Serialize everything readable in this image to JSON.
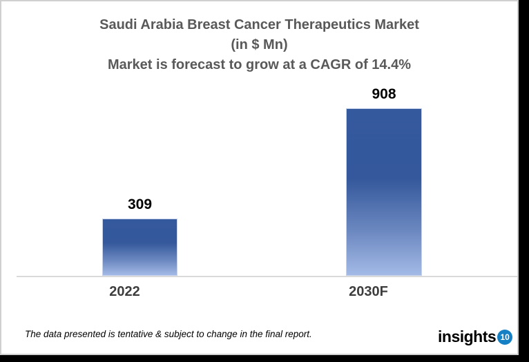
{
  "title": {
    "line1": "Saudi Arabia Breast Cancer Therapeutics Market",
    "line2": "(in $ Mn)",
    "line3": "Market is forecast to grow at a CAGR of 14.4%"
  },
  "chart_data": {
    "type": "bar",
    "categories": [
      "2022",
      "2030F"
    ],
    "values": [
      309,
      908
    ],
    "title": "Saudi Arabia Breast Cancer Therapeutics Market (in $ Mn)",
    "subtitle": "Market is forecast to grow at a CAGR of 14.4%",
    "unit": "$ Mn",
    "cagr": "14.4%",
    "ylim": [
      0,
      1000
    ],
    "grid": false,
    "legend": "none",
    "bar_color_top": "#35599d",
    "bar_color_bottom": "#a3bae6",
    "axis_line_color": "#d9d9d9"
  },
  "footer": {
    "note": "The data presented is tentative & subject to change in the final report.",
    "brand": "insights",
    "brand_badge": "10"
  }
}
